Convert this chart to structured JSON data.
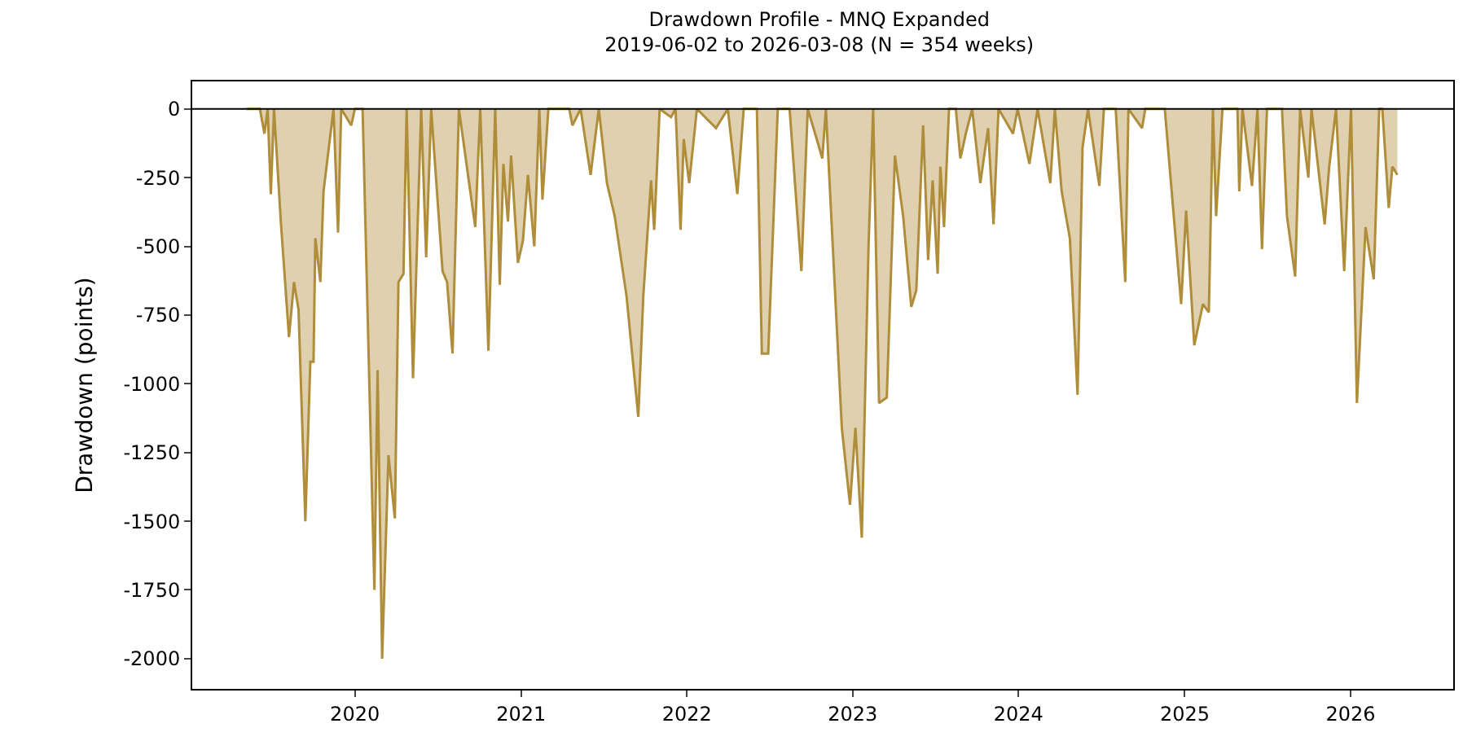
{
  "chart_data": {
    "type": "area",
    "title": "Drawdown Profile - MNQ Expanded",
    "subtitle": "2019-06-02 to 2026-03-08 (N = 354 weeks)",
    "ylabel": "Drawdown (points)",
    "x": [
      "2019-05-07",
      "2019-06-06",
      "2019-06-16",
      "2019-06-23",
      "2019-06-30",
      "2019-07-07",
      "2019-07-22",
      "2019-08-09",
      "2019-08-20",
      "2019-08-30",
      "2019-09-14",
      "2019-09-25",
      "2019-10-02",
      "2019-10-06",
      "2019-10-17",
      "2019-10-24",
      "2019-11-15",
      "2019-11-25",
      "2019-12-02",
      "2019-12-24",
      "2020-01-01",
      "2020-01-18",
      "2020-02-13",
      "2020-02-20",
      "2020-03-01",
      "2020-03-15",
      "2020-03-29",
      "2020-04-06",
      "2020-04-17",
      "2020-04-24",
      "2020-05-08",
      "2020-05-26",
      "2020-06-06",
      "2020-06-17",
      "2020-07-12",
      "2020-07-22",
      "2020-08-03",
      "2020-08-17",
      "2020-09-22",
      "2020-10-03",
      "2020-10-21",
      "2020-11-05",
      "2020-11-15",
      "2020-11-23",
      "2020-12-03",
      "2020-12-10",
      "2020-12-25",
      "2021-01-05",
      "2021-01-16",
      "2021-01-30",
      "2021-02-10",
      "2021-02-17",
      "2021-03-02",
      "2021-04-17",
      "2021-04-24",
      "2021-05-12",
      "2021-06-03",
      "2021-06-21",
      "2021-07-09",
      "2021-07-26",
      "2021-08-21",
      "2021-09-16",
      "2021-09-27",
      "2021-10-14",
      "2021-10-21",
      "2021-11-02",
      "2021-11-27",
      "2021-12-07",
      "2021-12-18",
      "2021-12-25",
      "2022-01-06",
      "2022-01-23",
      "2022-03-06",
      "2022-04-01",
      "2022-04-22",
      "2022-05-06",
      "2022-06-04",
      "2022-06-15",
      "2022-06-29",
      "2022-07-20",
      "2022-08-15",
      "2022-09-10",
      "2022-09-24",
      "2022-10-12",
      "2022-10-26",
      "2022-11-03",
      "2022-12-08",
      "2022-12-26",
      "2023-01-07",
      "2023-01-21",
      "2023-02-05",
      "2023-02-15",
      "2023-02-28",
      "2023-03-17",
      "2023-04-04",
      "2023-04-22",
      "2023-05-10",
      "2023-05-21",
      "2023-06-05",
      "2023-06-16",
      "2023-06-26",
      "2023-07-07",
      "2023-07-13",
      "2023-07-21",
      "2023-08-01",
      "2023-08-16",
      "2023-08-26",
      "2023-09-07",
      "2023-09-21",
      "2023-10-09",
      "2023-10-26",
      "2023-11-07",
      "2023-11-18",
      "2023-12-20",
      "2023-12-30",
      "2024-01-25",
      "2024-02-12",
      "2024-03-11",
      "2024-03-21",
      "2024-04-05",
      "2024-04-23",
      "2024-05-10",
      "2024-05-21",
      "2024-06-02",
      "2024-06-27",
      "2024-07-07",
      "2024-08-02",
      "2024-08-23",
      "2024-08-30",
      "2024-09-29",
      "2024-10-06",
      "2024-11-18",
      "2024-12-24",
      "2025-01-04",
      "2025-01-22",
      "2025-02-10",
      "2025-02-23",
      "2025-03-04",
      "2025-03-11",
      "2025-03-25",
      "2025-04-27",
      "2025-05-01",
      "2025-05-08",
      "2025-05-29",
      "2025-06-10",
      "2025-06-20",
      "2025-07-01",
      "2025-08-03",
      "2025-08-14",
      "2025-09-01",
      "2025-09-12",
      "2025-09-30",
      "2025-10-07",
      "2025-11-05",
      "2025-11-15",
      "2025-11-30",
      "2025-12-18",
      "2026-01-02",
      "2026-01-15",
      "2026-02-03",
      "2026-02-21",
      "2026-03-05",
      "2026-03-12",
      "2026-03-26",
      "2026-04-03",
      "2026-04-14"
    ],
    "series": [
      {
        "color": "#b08d3a",
        "values": [
          0,
          0,
          -90,
          0,
          -310,
          0,
          -410,
          -830,
          -630,
          -730,
          -1500,
          -920,
          -920,
          -470,
          -630,
          -300,
          0,
          -450,
          0,
          -60,
          0,
          0,
          -1750,
          -950,
          -2000,
          -1260,
          -1490,
          -630,
          -600,
          0,
          -980,
          0,
          -540,
          0,
          -590,
          -630,
          -890,
          0,
          -430,
          0,
          -880,
          0,
          -640,
          -200,
          -410,
          -170,
          -560,
          -480,
          -240,
          -500,
          0,
          -330,
          0,
          0,
          -60,
          0,
          -240,
          0,
          -270,
          -390,
          -680,
          -1120,
          -680,
          -260,
          -440,
          0,
          -30,
          0,
          -440,
          -110,
          -270,
          0,
          -70,
          0,
          -310,
          0,
          0,
          -890,
          -890,
          0,
          0,
          -590,
          0,
          -100,
          -180,
          0,
          -1160,
          -1440,
          -1160,
          -1560,
          -490,
          0,
          -1070,
          -1050,
          -170,
          -390,
          -720,
          -660,
          -60,
          -550,
          -260,
          -600,
          -210,
          -430,
          0,
          0,
          -180,
          -90,
          0,
          -270,
          -70,
          -420,
          0,
          -90,
          0,
          -200,
          0,
          -270,
          0,
          -300,
          -470,
          -1040,
          -140,
          0,
          -280,
          0,
          0,
          -630,
          0,
          -70,
          0,
          0,
          -710,
          -370,
          -860,
          -710,
          -740,
          0,
          -390,
          0,
          0,
          -300,
          0,
          -280,
          0,
          -510,
          0,
          0,
          -390,
          -610,
          0,
          -250,
          0,
          -420,
          -210,
          0,
          -590,
          0,
          -1070,
          -430,
          -620,
          0,
          0,
          -360,
          -210,
          -240
        ]
      }
    ],
    "xlim": [
      "2019-01-08",
      "2026-08-15"
    ],
    "xticks": [
      {
        "value": "2020-01-01",
        "label": "2020"
      },
      {
        "value": "2021-01-01",
        "label": "2021"
      },
      {
        "value": "2022-01-01",
        "label": "2022"
      },
      {
        "value": "2023-01-01",
        "label": "2023"
      },
      {
        "value": "2024-01-01",
        "label": "2024"
      },
      {
        "value": "2025-01-01",
        "label": "2025"
      },
      {
        "value": "2026-01-01",
        "label": "2026"
      }
    ],
    "ylim": [
      -2110,
      100
    ],
    "yticks": [
      0,
      -250,
      -500,
      -750,
      -1000,
      -1250,
      -1500,
      -1750,
      -2000
    ],
    "ref_lines": [
      {
        "axis": "y",
        "value": 0,
        "color": "#000000"
      }
    ]
  }
}
